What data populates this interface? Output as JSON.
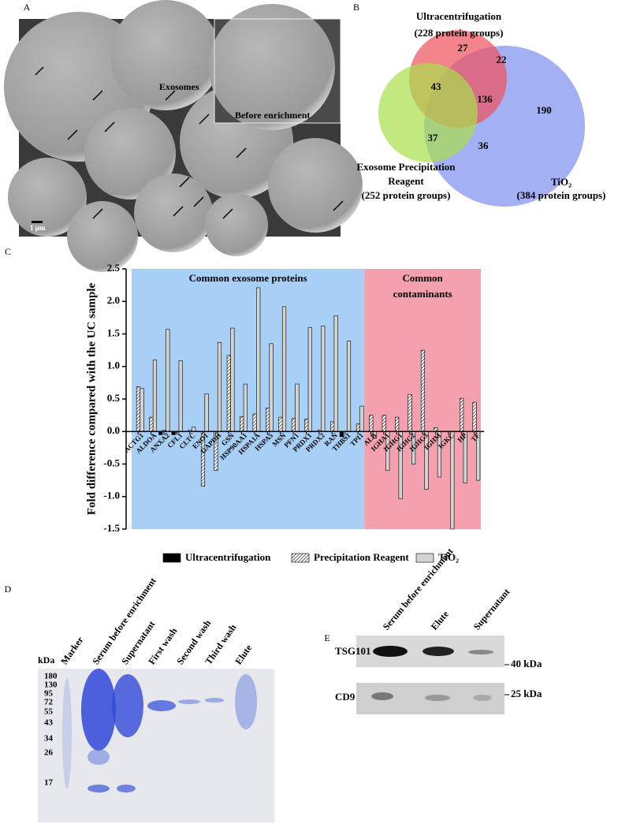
{
  "panel_a": {
    "letter": "A",
    "label_exosomes": "Exosomes",
    "label_inset": "Before enrichment",
    "scale_bar": "1 μm"
  },
  "venn": {
    "letter": "B",
    "sets": [
      {
        "lines": [
          "Ultracentrifugation",
          "(228 protein groups)"
        ],
        "color": "#f0505a"
      },
      {
        "lines": [
          "Exosome Precipitation",
          "Reagent",
          "(252 protein groups)"
        ],
        "color": "#a8e04a"
      },
      {
        "lines": [
          "TiO₂",
          "(384 protein groups)"
        ],
        "color": "#7d8ef0"
      }
    ],
    "regions": [
      27,
      22,
      43,
      136,
      190,
      37,
      36
    ]
  },
  "chart_data": {
    "type": "bar",
    "letter": "C",
    "y_label": "Fold difference compared with the UC sample",
    "categories": [
      "ACTG1",
      "ALDOA",
      "ANXA2",
      "CFL1",
      "CLTC",
      "ENO1",
      "GAPDH",
      "GSN",
      "HSP90AA1",
      "HSPA1A",
      "HSPA5",
      "MSN",
      "PFN1",
      "PRDX1",
      "PRDX2",
      "RAN",
      "THBS1",
      "TPI1",
      "ALB",
      "IGHA1",
      "IGHG1",
      "IGHG2",
      "IGHG3",
      "IGHM",
      "IGKC",
      "HP",
      "TF"
    ],
    "series": [
      {
        "name": "Ultracentrifugation",
        "color": "#000000",
        "values": [
          0,
          0,
          -0.05,
          -0.05,
          0,
          0,
          0,
          0,
          0,
          0,
          0,
          0,
          0,
          0,
          0,
          0,
          -0.08,
          0,
          0,
          0,
          0,
          0,
          0,
          0,
          0,
          0,
          0
        ]
      },
      {
        "name": "Precipitation Reagent",
        "color": "#ffffff",
        "hatch": true,
        "values": [
          0.69,
          0.22,
          0.02,
          -0.02,
          0.02,
          -0.84,
          -0.6,
          1.17,
          0.23,
          0.27,
          0.36,
          0.22,
          0.2,
          0.19,
          0.02,
          0.15,
          0,
          0.12,
          0.25,
          0.25,
          0.22,
          0.57,
          1.25,
          0.06,
          0,
          0.51,
          0.45
        ]
      },
      {
        "name": "TiO₂",
        "color": "#d3d3d3",
        "values": [
          0.66,
          1.1,
          1.57,
          1.09,
          0.07,
          0.58,
          1.37,
          1.59,
          0.73,
          2.21,
          1.35,
          1.92,
          0.73,
          1.6,
          1.62,
          1.78,
          1.39,
          0.39,
          -0.1,
          -0.6,
          -1.03,
          -0.5,
          -0.89,
          -0.7,
          -1.5,
          -0.79,
          -0.75
        ]
      }
    ],
    "bands": [
      {
        "label": "Common exosome proteins",
        "color": "#a8cff5",
        "count": 18
      },
      {
        "label": [
          "Common",
          "contaminants"
        ],
        "color": "#f5a0ae",
        "count": 9
      }
    ],
    "ylim": [
      -1.5,
      2.5
    ],
    "yticks": [
      {
        "value": -1.5,
        "label": "-1.5"
      },
      {
        "value": -1,
        "label": "-1.0"
      },
      {
        "value": -0.5,
        "label": "-0.5"
      },
      {
        "value": 0,
        "label": "0.0"
      },
      0.5,
      {
        "value": 1,
        "label": "1.0"
      },
      1.5,
      {
        "value": 2,
        "label": "2.0"
      },
      2.5
    ],
    "legend": "bottom"
  },
  "gel": {
    "letter": "D",
    "unit": "kDa",
    "lanes": [
      "Marker",
      "Serum before enrichment",
      "Supernatant",
      "First wash",
      "Second wash",
      "Third wash",
      "Elute"
    ],
    "markers": [
      "180",
      "130",
      "95",
      "72",
      "55",
      "43",
      "34",
      "26",
      "17"
    ]
  },
  "blot": {
    "letter": "E",
    "lanes": [
      "Serum before enrichment",
      "Elute",
      "Supernatant"
    ],
    "rows": [
      {
        "name": "TSG101",
        "size": "40 kDa"
      },
      {
        "name": "CD9",
        "size": "25 kDa"
      }
    ]
  }
}
